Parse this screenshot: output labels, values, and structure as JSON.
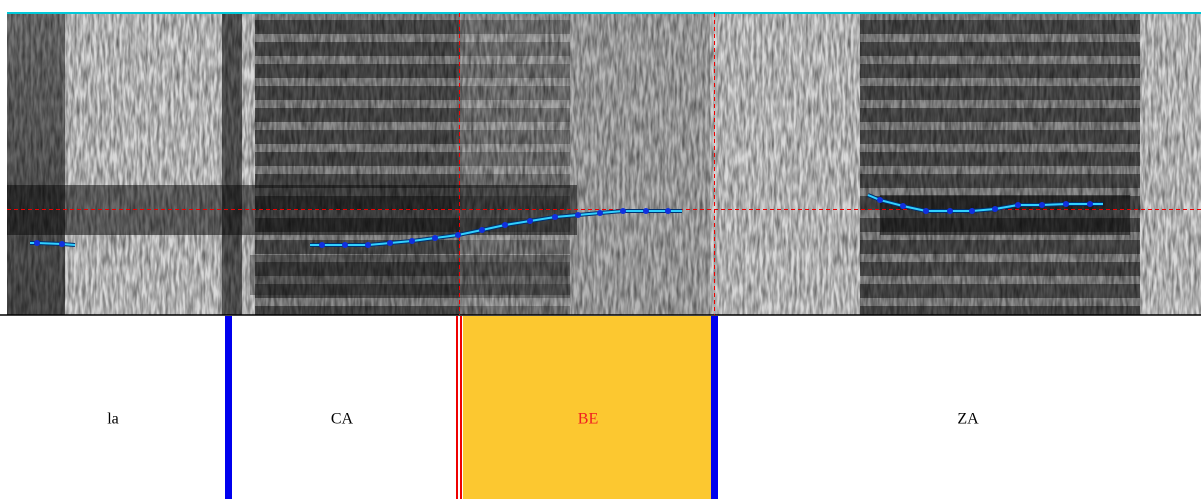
{
  "intervals": [
    "la",
    "CA",
    "BE",
    "ZA"
  ]
}
